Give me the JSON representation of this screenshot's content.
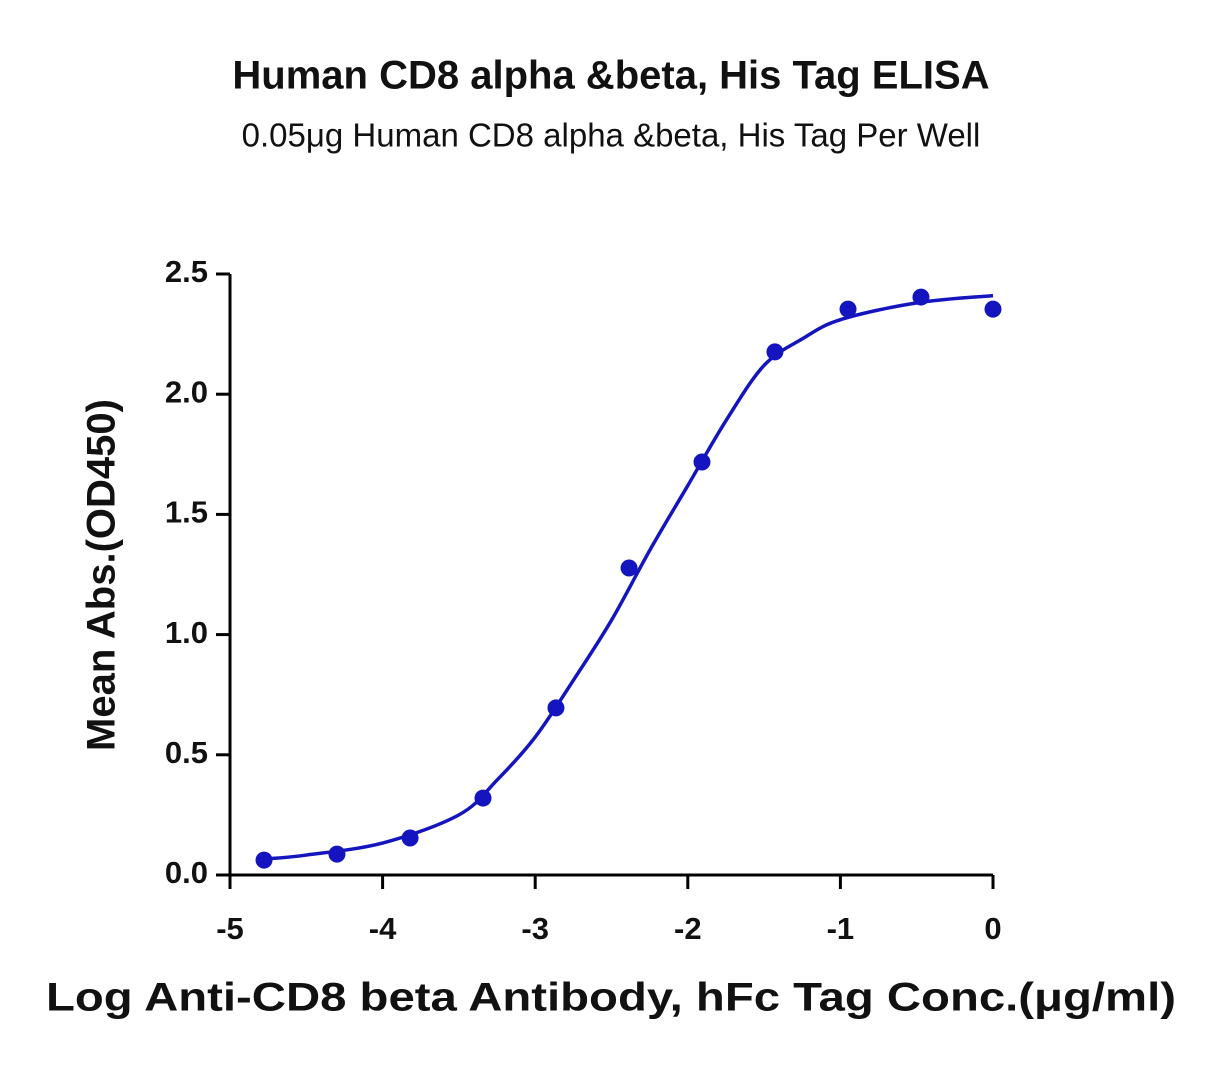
{
  "chart_data": {
    "type": "scatter",
    "title": "Human CD8 alpha &beta, His Tag ELISA",
    "subtitle": "0.05μg Human CD8 alpha &beta, His Tag Per Well",
    "x_label": "Log Anti-CD8 beta Antibody, hFc Tag Conc.(μg/ml)",
    "y_label": "Mean Abs.(OD450)",
    "xlim": [
      -5,
      0
    ],
    "xticks": [
      -5,
      -4,
      -3,
      -2,
      -1,
      0
    ],
    "ylim": [
      0,
      2.5
    ],
    "yticks": [
      {
        "value": 0,
        "label": "0.0"
      },
      0.5,
      {
        "value": 1,
        "label": "1.0"
      },
      1.5,
      {
        "value": 2,
        "label": "2.0"
      },
      2.5
    ],
    "color": "#1515c0",
    "points": {
      "x": [
        -4.777,
        -4.299,
        -3.82,
        -3.342,
        -2.864,
        -2.385,
        -1.907,
        -1.429,
        -0.95,
        -0.472,
        0
      ],
      "values": [
        0.062,
        0.087,
        0.154,
        0.32,
        0.695,
        1.277,
        1.718,
        2.176,
        2.354,
        2.404,
        2.354
      ]
    },
    "curve": {
      "x": [
        -4.777,
        -4.5,
        -4,
        -3.5,
        -3.25,
        -3,
        -2.75,
        -2.5,
        -2.25,
        -2,
        -1.75,
        -1.5,
        -1.25,
        -1,
        -0.5,
        0
      ],
      "values": [
        0.066,
        0.083,
        0.133,
        0.25,
        0.395,
        0.574,
        0.81,
        1.06,
        1.35,
        1.62,
        1.89,
        2.12,
        2.23,
        2.31,
        2.38,
        2.41
      ]
    }
  }
}
